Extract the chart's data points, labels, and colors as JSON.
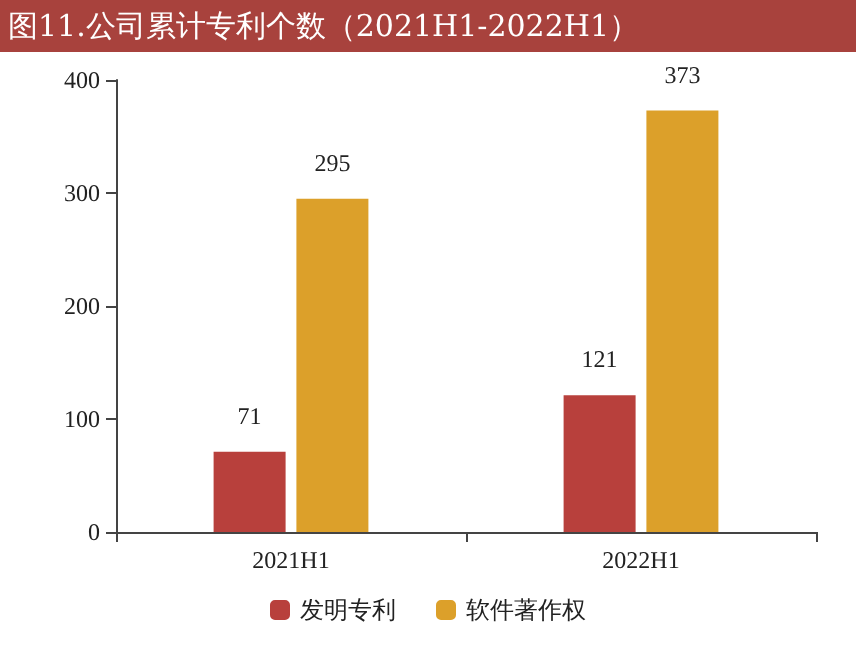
{
  "chart_data": {
    "type": "bar",
    "title": "图11.公司累计专利个数（2021H1-2022H1）",
    "categories": [
      "2021H1",
      "2022H1"
    ],
    "series": [
      {
        "name": "发明专利",
        "color": "#b8403c",
        "values": [
          71,
          121
        ]
      },
      {
        "name": "软件著作权",
        "color": "#dca02a",
        "values": [
          295,
          373
        ]
      }
    ],
    "ylim": [
      0,
      400
    ],
    "yticks": [
      0,
      100,
      200,
      300,
      400
    ],
    "grid": false,
    "legend": "bottom",
    "data_labels": true
  }
}
